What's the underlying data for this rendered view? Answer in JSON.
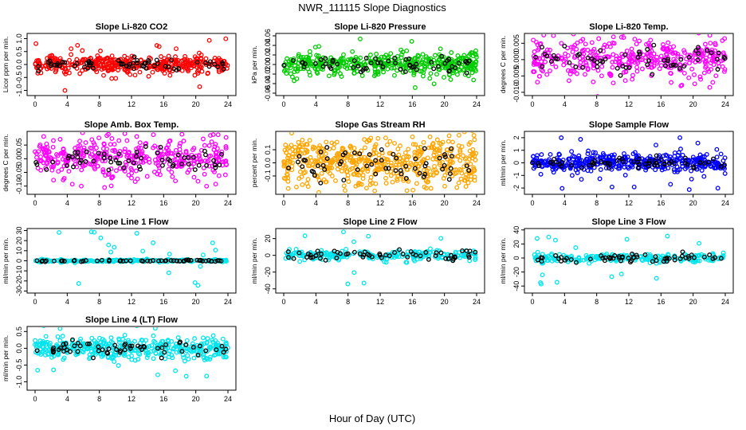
{
  "figure": {
    "title": "NWR_111115  Slope Diagnostics",
    "xlabel": "Hour of Day (UTC)"
  },
  "chart_data": [
    {
      "type": "scatter",
      "title": "Slope Li-820 CO2",
      "ylabel": "Licor ppm per min.",
      "xlim": [
        0,
        24
      ],
      "ylim": [
        -1.2,
        1.2
      ],
      "xticks": [
        0,
        4,
        8,
        12,
        16,
        20,
        24
      ],
      "yticks": [
        -1.0,
        -0.5,
        0.0,
        0.5,
        1.0
      ],
      "ytick_labels": [
        "-1.0",
        "-0.5",
        "0.0",
        "0.5",
        "1.0"
      ],
      "series": [
        {
          "name": "all",
          "color": "#ff0000",
          "spread": 0.16,
          "n": 420
        },
        {
          "name": "selected",
          "color": "#000000",
          "spread": 0.12,
          "n": 60
        }
      ]
    },
    {
      "type": "scatter",
      "title": "Slope Li-820 Pressure",
      "ylabel": "kPa per min.",
      "xlim": [
        0,
        24
      ],
      "ylim": [
        -0.065,
        0.065
      ],
      "xticks": [
        0,
        4,
        8,
        12,
        16,
        20,
        24
      ],
      "yticks": [
        -0.06,
        -0.04,
        -0.02,
        0.0,
        0.02,
        0.04,
        0.06
      ],
      "ytick_labels": [
        "-0.06",
        "-0.04",
        "-0.02",
        "0.00",
        "0.02",
        "0.04",
        "0.06"
      ],
      "series": [
        {
          "name": "all",
          "color": "#00cc00",
          "spread": 0.012,
          "n": 420
        },
        {
          "name": "selected",
          "color": "#000000",
          "spread": 0.008,
          "n": 60
        }
      ]
    },
    {
      "type": "scatter",
      "title": "Slope Li-820 Temp.",
      "ylabel": "degrees C per min.",
      "xlim": [
        0,
        24
      ],
      "ylim": [
        -0.011,
        0.008
      ],
      "xticks": [
        0,
        4,
        8,
        12,
        16,
        20,
        24
      ],
      "yticks": [
        -0.01,
        -0.005,
        0.0,
        0.005
      ],
      "ytick_labels": [
        "-0.010",
        "-0.005",
        "0.000",
        "0.005"
      ],
      "series": [
        {
          "name": "all",
          "color": "#ff00ff",
          "spread": 0.003,
          "n": 380
        },
        {
          "name": "selected",
          "color": "#000000",
          "spread": 0.002,
          "n": 60
        }
      ]
    },
    {
      "type": "scatter",
      "title": "Slope Amb. Box Temp.",
      "ylabel": "degrees C per min.",
      "xlim": [
        0,
        24
      ],
      "ylim": [
        -0.13,
        0.1
      ],
      "xticks": [
        0,
        4,
        8,
        12,
        16,
        20,
        24
      ],
      "yticks": [
        -0.1,
        -0.05,
        0.0,
        0.05
      ],
      "ytick_labels": [
        "-0.10",
        "-0.05",
        "0.00",
        "0.05"
      ],
      "series": [
        {
          "name": "all",
          "color": "#ff00ff",
          "spread": 0.035,
          "n": 380
        },
        {
          "name": "selected",
          "color": "#000000",
          "spread": 0.025,
          "n": 60
        }
      ]
    },
    {
      "type": "scatter",
      "title": "Slope Gas Stream RH",
      "ylabel": "percent per min.",
      "xlim": [
        0,
        24
      ],
      "ylim": [
        -0.24,
        0.24
      ],
      "xticks": [
        0,
        4,
        8,
        12,
        16,
        20,
        24
      ],
      "yticks": [
        -0.1,
        0.0,
        0.1
      ],
      "ytick_labels": [
        "-0.1",
        "0.0",
        "0.1"
      ],
      "series": [
        {
          "name": "all",
          "color": "#ffa500",
          "spread": 0.09,
          "n": 520
        },
        {
          "name": "selected",
          "color": "#000000",
          "spread": 0.07,
          "n": 60
        }
      ]
    },
    {
      "type": "scatter",
      "title": "Slope Sample Flow",
      "ylabel": "ml/min per min.",
      "xlim": [
        0,
        24
      ],
      "ylim": [
        -2.5,
        2.5
      ],
      "xticks": [
        0,
        4,
        8,
        12,
        16,
        20,
        24
      ],
      "yticks": [
        -2,
        -1,
        0,
        1,
        2
      ],
      "ytick_labels": [
        "-2",
        "-1",
        "0",
        "1",
        "2"
      ],
      "series": [
        {
          "name": "all",
          "color": "#0000ff",
          "spread": 0.35,
          "n": 420
        },
        {
          "name": "selected",
          "color": "#000000",
          "spread": 0.2,
          "n": 60
        }
      ]
    },
    {
      "type": "scatter",
      "title": "Slope Line 1 Flow",
      "ylabel": "ml/min per min.",
      "xlim": [
        0,
        24
      ],
      "ylim": [
        -32,
        32
      ],
      "xticks": [
        0,
        4,
        8,
        12,
        16,
        20,
        24
      ],
      "yticks": [
        -30,
        -20,
        -10,
        0,
        10,
        20,
        30
      ],
      "ytick_labels": [
        "-30",
        "-20",
        "-10",
        "0",
        "10",
        "20",
        "30"
      ],
      "series": [
        {
          "name": "all",
          "color": "#00e5ee",
          "spread": 0.6,
          "n": 220
        },
        {
          "name": "selected",
          "color": "#000000",
          "spread": 0.4,
          "n": 60
        }
      ]
    },
    {
      "type": "scatter",
      "title": "Slope Line 2 Flow",
      "ylabel": "ml/min per min.",
      "xlim": [
        0,
        24
      ],
      "ylim": [
        -45,
        32
      ],
      "xticks": [
        0,
        4,
        8,
        12,
        16,
        20,
        24
      ],
      "yticks": [
        -40,
        -20,
        0,
        20
      ],
      "ytick_labels": [
        "-40",
        "-20",
        "0",
        "20"
      ],
      "series": [
        {
          "name": "all",
          "color": "#00e5ee",
          "spread": 3,
          "n": 240
        },
        {
          "name": "selected",
          "color": "#000000",
          "spread": 3,
          "n": 60
        }
      ]
    },
    {
      "type": "scatter",
      "title": "Slope Line 3 Flow",
      "ylabel": "ml/min per min.",
      "xlim": [
        0,
        24
      ],
      "ylim": [
        -50,
        42
      ],
      "xticks": [
        0,
        4,
        8,
        12,
        16,
        20,
        24
      ],
      "yticks": [
        -40,
        -20,
        0,
        20,
        40
      ],
      "ytick_labels": [
        "-40",
        "-20",
        "0",
        "20",
        "40"
      ],
      "series": [
        {
          "name": "all",
          "color": "#00e5ee",
          "spread": 3,
          "n": 240
        },
        {
          "name": "selected",
          "color": "#000000",
          "spread": 3,
          "n": 60
        }
      ]
    },
    {
      "type": "scatter",
      "title": "Slope Line 4 (LT) Flow",
      "ylabel": "ml/min per min.",
      "xlim": [
        0,
        24
      ],
      "ylim": [
        -1.25,
        0.65
      ],
      "xticks": [
        0,
        4,
        8,
        12,
        16,
        20,
        24
      ],
      "yticks": [
        -1.0,
        -0.5,
        0.0,
        0.5
      ],
      "ytick_labels": [
        "-1.0",
        "-0.5",
        "0.0",
        "0.5"
      ],
      "series": [
        {
          "name": "all",
          "color": "#00e5ee",
          "spread": 0.15,
          "n": 420
        },
        {
          "name": "selected",
          "color": "#000000",
          "spread": 0.12,
          "n": 60
        }
      ]
    }
  ]
}
